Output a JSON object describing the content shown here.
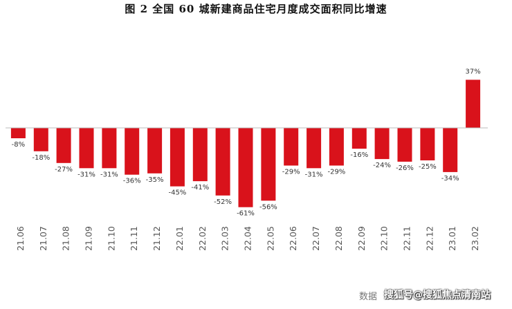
{
  "chart_data": {
    "type": "bar",
    "title": "图 2    全国 60 城新建商品住宅月度成交面积同比增速",
    "categories": [
      "21.06",
      "21.07",
      "21.08",
      "21.09",
      "21.10",
      "21.11",
      "21.12",
      "22.01",
      "22.02",
      "22.03",
      "22.04",
      "22.05",
      "22.06",
      "22.07",
      "22.08",
      "22.09",
      "22.10",
      "22.11",
      "22.12",
      "23.01",
      "23.02"
    ],
    "values": [
      -8,
      -18,
      -27,
      -31,
      -31,
      -36,
      -35,
      -45,
      -41,
      -52,
      -61,
      -56,
      -29,
      -31,
      -29,
      -16,
      -24,
      -26,
      -25,
      -34,
      37
    ],
    "data_labels": [
      "-8%",
      "-18%",
      "-27%",
      "-31%",
      "-31%",
      "-36%",
      "-35%",
      "-45%",
      "-41%",
      "-52%",
      "-61%",
      "-56%",
      "-29%",
      "-31%",
      "-29%",
      "-16%",
      "-24%",
      "-26%",
      "-25%",
      "-34%",
      "37%"
    ],
    "xlabel": "",
    "ylabel": "",
    "ylim": [
      -70,
      40
    ],
    "bar_color": "#d9121b",
    "grid": false,
    "legend": "none",
    "source": "数据",
    "watermark": "搜狐号@搜狐焦点清南站"
  }
}
